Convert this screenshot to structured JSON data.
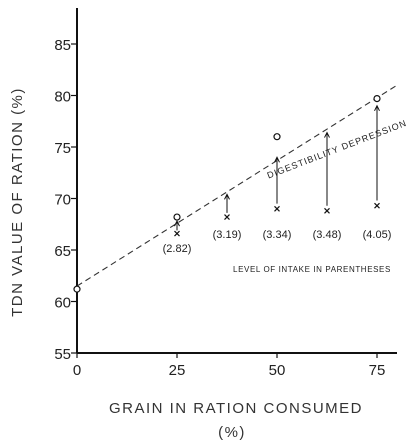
{
  "chart_data": {
    "type": "scatter",
    "xlabel": "GRAIN IN RATION CONSUMED",
    "xlabel_unit": "(%)",
    "ylabel": "TDN VALUE OF RATION (%)",
    "xlim": [
      0,
      80
    ],
    "ylim": [
      55,
      88
    ],
    "x_ticks": [
      0,
      25,
      50,
      75
    ],
    "y_ticks": [
      55,
      60,
      65,
      70,
      75,
      80,
      85
    ],
    "x_tick_labels": [
      "0",
      "25",
      "50",
      "75"
    ],
    "y_tick_labels": [
      "55",
      "60",
      "65",
      "70",
      "75",
      "80",
      "85"
    ],
    "reference_line": {
      "x": [
        0,
        80
      ],
      "y": [
        61.5,
        81.0
      ],
      "style": "dashed"
    },
    "expected_points": [
      {
        "x": 0,
        "y": 61.2
      },
      {
        "x": 25,
        "y": 68.2
      },
      {
        "x": 50,
        "y": 76.0
      },
      {
        "x": 75,
        "y": 79.7
      }
    ],
    "observed_points": [
      {
        "x": 25,
        "y": 66.6,
        "intake_label": "(2.82)"
      },
      {
        "x": 37.5,
        "y": 68.2,
        "intake_label": "(3.19)"
      },
      {
        "x": 50,
        "y": 69.0,
        "intake_label": "(3.34)"
      },
      {
        "x": 62.5,
        "y": 68.8,
        "intake_label": "(3.48)"
      },
      {
        "x": 75,
        "y": 69.3,
        "intake_label": "(4.05)"
      }
    ],
    "depression_arrows": [
      {
        "x": 25,
        "y_from": 66.9,
        "y_to": 67.8
      },
      {
        "x": 37.5,
        "y_from": 68.6,
        "y_to": 70.4
      },
      {
        "x": 50,
        "y_from": 69.5,
        "y_to": 74.0
      },
      {
        "x": 62.5,
        "y_from": 69.3,
        "y_to": 76.4
      },
      {
        "x": 75,
        "y_from": 69.8,
        "y_to": 79.0
      }
    ],
    "annotations": {
      "line_label": "DIGESTIBILITY DEPRESSION",
      "intake_note": "LEVEL OF INTAKE IN PARENTHESES"
    }
  }
}
